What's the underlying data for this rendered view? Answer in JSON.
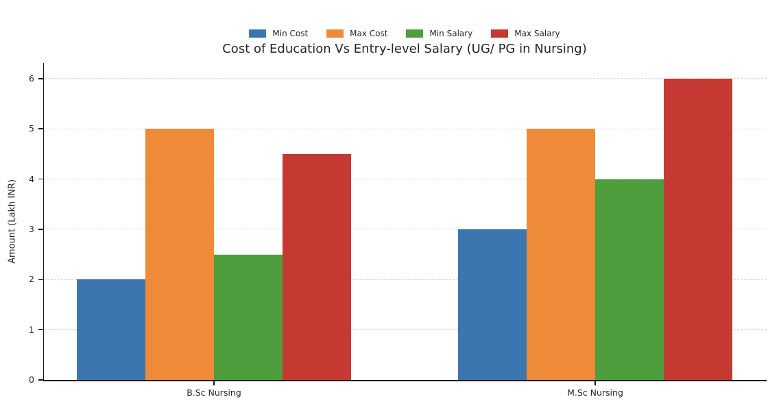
{
  "chart_data": {
    "type": "bar",
    "title": "Cost of Education Vs Entry-level Salary (UG/ PG in Nursing)",
    "xlabel": "",
    "ylabel": "Amount (Lakh INR)",
    "categories": [
      "B.Sc Nursing",
      "M.Sc Nursing"
    ],
    "series": [
      {
        "name": "Min Cost",
        "color": "#3B76B0",
        "values": [
          2,
          3
        ]
      },
      {
        "name": "Max Cost",
        "color": "#EF8A39",
        "values": [
          5,
          5
        ]
      },
      {
        "name": "Min Salary",
        "color": "#4F9E3E",
        "values": [
          2.5,
          4
        ]
      },
      {
        "name": "Max Salary",
        "color": "#C43A32",
        "values": [
          4.5,
          6
        ]
      }
    ],
    "yticks": [
      0,
      1,
      2,
      3,
      4,
      5,
      6
    ],
    "ylim": [
      0,
      6.31
    ],
    "grid": true,
    "grid_style": "dashed",
    "grid_color": "#d8d8d8",
    "axis_color": "#1a1a1a",
    "text_color": "#262626",
    "legend_position": "top-center"
  }
}
